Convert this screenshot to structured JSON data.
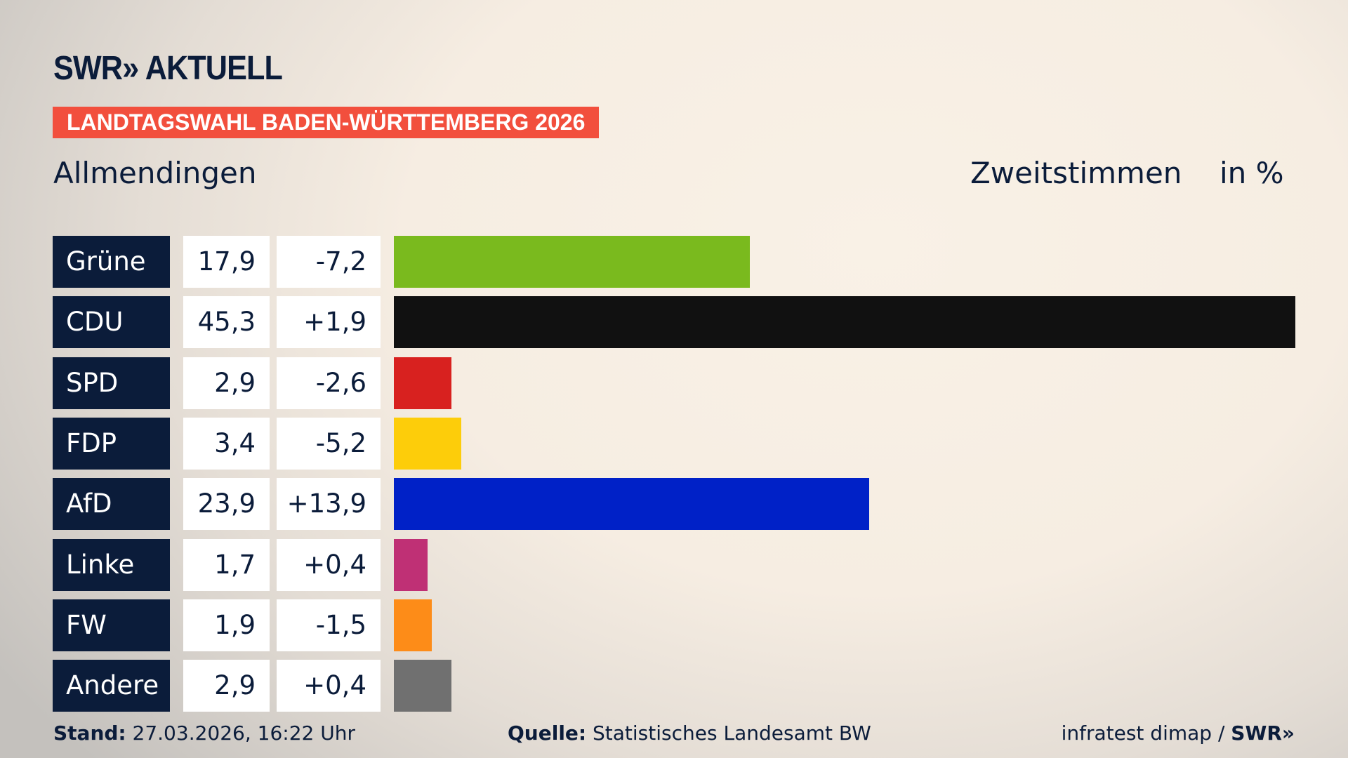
{
  "header": {
    "logo": "SWR» AKTUELL",
    "banner": "LANDTAGSWAHL BADEN-WÜRTTEMBERG 2026",
    "region": "Allmendingen",
    "measure": "Zweitstimmen",
    "unit": "in %"
  },
  "chart_data": {
    "type": "bar",
    "orientation": "horizontal",
    "xlim": [
      0,
      45.3
    ],
    "categories": [
      "Grüne",
      "CDU",
      "SPD",
      "FDP",
      "AfD",
      "Linke",
      "FW",
      "Andere"
    ],
    "values": [
      17.9,
      45.3,
      2.9,
      3.4,
      23.9,
      1.7,
      1.9,
      2.9
    ],
    "value_labels": [
      "17,9",
      "45,3",
      "2,9",
      "3,4",
      "23,9",
      "1,7",
      "1,9",
      "2,9"
    ],
    "diff_labels": [
      "-7,2",
      "+1,9",
      "-2,6",
      "-5,2",
      "+13,9",
      "+0,4",
      "-1,5",
      "+0,4"
    ],
    "colors": [
      "#7aba1e",
      "#111111",
      "#d8211f",
      "#fdcd0a",
      "#0021c7",
      "#bf3075",
      "#fd8c18",
      "#707070"
    ]
  },
  "footer": {
    "stand_label": "Stand:",
    "stand": "27.03.2026, 16:22 Uhr",
    "source_label": "Quelle:",
    "source": "Statistisches Landesamt BW",
    "credit": "infratest dimap / ",
    "credit_logo": "SWR»"
  }
}
